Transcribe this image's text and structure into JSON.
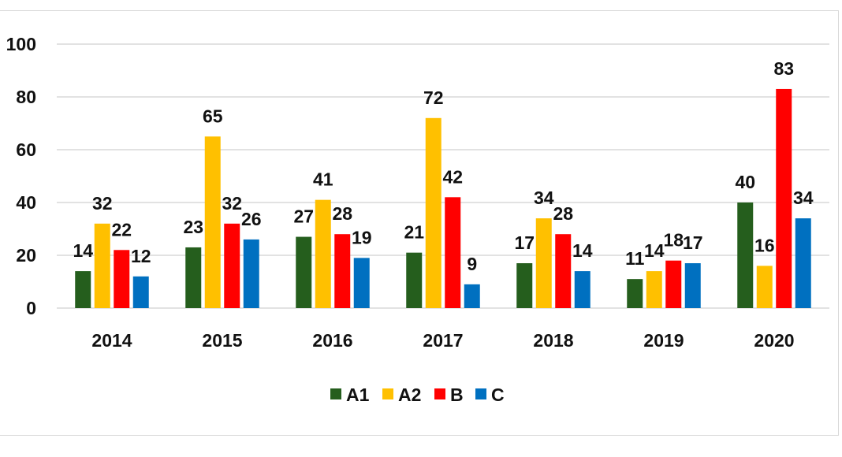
{
  "chart_data": {
    "type": "bar",
    "title": "",
    "xlabel": "",
    "ylabel": "",
    "ylim": [
      0,
      100
    ],
    "yticks": [
      "0",
      "20",
      "40",
      "60",
      "80",
      "100"
    ],
    "categories": [
      "2014",
      "2015",
      "2016",
      "2017",
      "2018",
      "2019",
      "2020"
    ],
    "series": [
      {
        "name": "A1",
        "color": "#255e1d",
        "values": [
          14,
          23,
          27,
          21,
          17,
          11,
          40
        ]
      },
      {
        "name": "A2",
        "color": "#ffc000",
        "values": [
          32,
          65,
          41,
          72,
          34,
          14,
          16
        ]
      },
      {
        "name": "B",
        "color": "#ff0000",
        "values": [
          22,
          32,
          28,
          42,
          28,
          18,
          83
        ]
      },
      {
        "name": "C",
        "color": "#0070c0",
        "values": [
          12,
          26,
          19,
          9,
          14,
          17,
          34
        ]
      }
    ],
    "grid": true,
    "legend": "bottom"
  }
}
